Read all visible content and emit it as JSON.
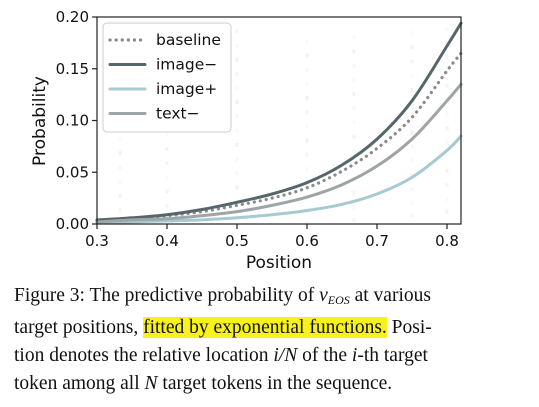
{
  "chart_data": {
    "type": "line",
    "xlabel": "Position",
    "ylabel": "Probability",
    "xlim": [
      0.3,
      0.82
    ],
    "ylim": [
      0.0,
      0.2
    ],
    "xticks": [
      "0.3",
      "0.4",
      "0.5",
      "0.6",
      "0.7",
      "0.8"
    ],
    "yticks": [
      "0.00",
      "0.05",
      "0.10",
      "0.15",
      "0.20"
    ],
    "legend_position": "top-left",
    "series": [
      {
        "name": "baseline",
        "style": "dotted",
        "color": "#8a8a8a",
        "x": [
          0.3,
          0.35,
          0.4,
          0.45,
          0.5,
          0.55,
          0.6,
          0.65,
          0.7,
          0.75,
          0.8,
          0.82
        ],
        "y": [
          0.003,
          0.005,
          0.008,
          0.012,
          0.018,
          0.025,
          0.035,
          0.051,
          0.073,
          0.103,
          0.148,
          0.165
        ]
      },
      {
        "name": "image−",
        "style": "solid",
        "color": "#55676a",
        "x": [
          0.3,
          0.35,
          0.4,
          0.45,
          0.5,
          0.55,
          0.6,
          0.65,
          0.7,
          0.75,
          0.8,
          0.82
        ],
        "y": [
          0.004,
          0.006,
          0.009,
          0.014,
          0.021,
          0.029,
          0.04,
          0.057,
          0.082,
          0.119,
          0.172,
          0.194
        ]
      },
      {
        "name": "image+",
        "style": "solid",
        "color": "#a7c9d1",
        "x": [
          0.3,
          0.35,
          0.4,
          0.45,
          0.5,
          0.55,
          0.6,
          0.65,
          0.7,
          0.75,
          0.8,
          0.82
        ],
        "y": [
          0.001,
          0.002,
          0.003,
          0.004,
          0.006,
          0.009,
          0.013,
          0.019,
          0.029,
          0.045,
          0.071,
          0.085
        ]
      },
      {
        "name": "text−",
        "style": "solid",
        "color": "#9ea5a6",
        "x": [
          0.3,
          0.35,
          0.4,
          0.45,
          0.5,
          0.55,
          0.6,
          0.65,
          0.7,
          0.75,
          0.8,
          0.82
        ],
        "y": [
          0.002,
          0.004,
          0.005,
          0.008,
          0.012,
          0.018,
          0.026,
          0.038,
          0.056,
          0.082,
          0.119,
          0.135
        ]
      }
    ]
  },
  "caption": {
    "line1_pre": "Figure 3: The predictive probability of ",
    "math_v": "v",
    "math_sub": "EOS",
    "line1_post": " at various",
    "line2_pre": "target positions, ",
    "line2_highlight": "fitted by exponential functions.",
    "line2_post": " Posi-",
    "line3_pre": "tion denotes the relative location ",
    "math_iN": "i/N",
    "line3_mid": " of the ",
    "math_i": "i",
    "line3_post": "-th target",
    "line4_pre": "token among all ",
    "math_N": "N",
    "line4_post": " target tokens in the sequence.",
    "highlight_color": "#f6f21a"
  }
}
